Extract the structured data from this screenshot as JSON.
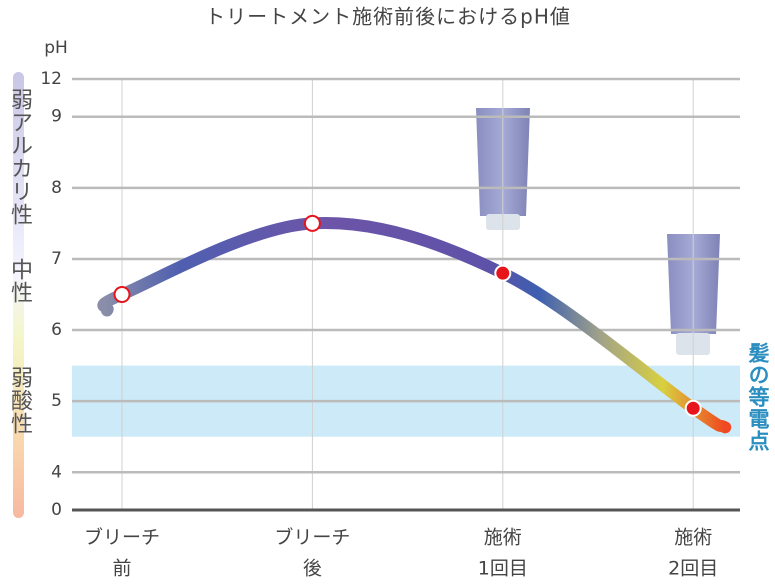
{
  "chart_data": {
    "type": "line",
    "title": "トリートメント施術前後におけるpH値",
    "y_label": "pH",
    "categories": [
      [
        "ブリーチ",
        "前"
      ],
      [
        "ブリーチ",
        "後"
      ],
      [
        "施術",
        "1回目"
      ],
      [
        "施術",
        "2回目"
      ]
    ],
    "series": [
      {
        "values": [
          6.5,
          7.5,
          6.8,
          4.9
        ],
        "marker_fill": [
          "#ffffff",
          "#ffffff",
          "#e8141b",
          "#e8141b"
        ],
        "marker_stroke": [
          "#e8141b",
          "#e8141b",
          "#ffffff",
          "#ffffff"
        ]
      }
    ],
    "ylim": [
      0,
      12
    ],
    "yticks": [
      0,
      4,
      5,
      6,
      7,
      8,
      9,
      12
    ],
    "grid": true,
    "band": {
      "range": [
        4.5,
        5.5
      ],
      "label": "髪の等電点",
      "color": "#cdeaf8"
    },
    "scale_labels": [
      "弱アルカリ性",
      "中性",
      "弱酸性"
    ]
  }
}
